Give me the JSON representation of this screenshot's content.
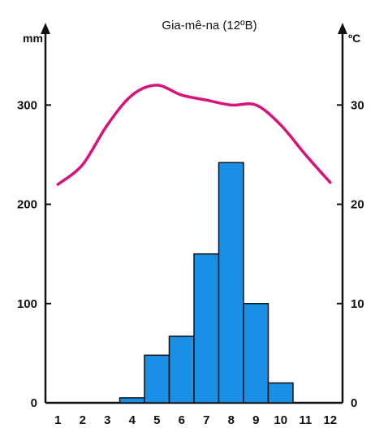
{
  "chart_data": {
    "type": "bar+line",
    "title": "Gia-mê-na (12ºB)",
    "categories": [
      "1",
      "2",
      "3",
      "4",
      "5",
      "6",
      "7",
      "8",
      "9",
      "10",
      "11",
      "12"
    ],
    "precipitation": {
      "unit": "mm",
      "values": [
        0,
        0,
        0,
        5,
        48,
        67,
        150,
        242,
        100,
        20,
        0,
        0
      ],
      "ylim": [
        0,
        360
      ],
      "ticks": [
        "0",
        "100",
        "200",
        "300"
      ],
      "color": "#1a8fe6"
    },
    "temperature": {
      "unit": "ºC",
      "values": [
        22.0,
        24.0,
        28.0,
        31.0,
        32.0,
        31.0,
        30.5,
        30.0,
        30.0,
        28.0,
        25.0,
        22.2
      ],
      "ylim": [
        0,
        36
      ],
      "ticks": [
        "0",
        "10",
        "20",
        "30"
      ],
      "color": "#d8127a"
    }
  }
}
